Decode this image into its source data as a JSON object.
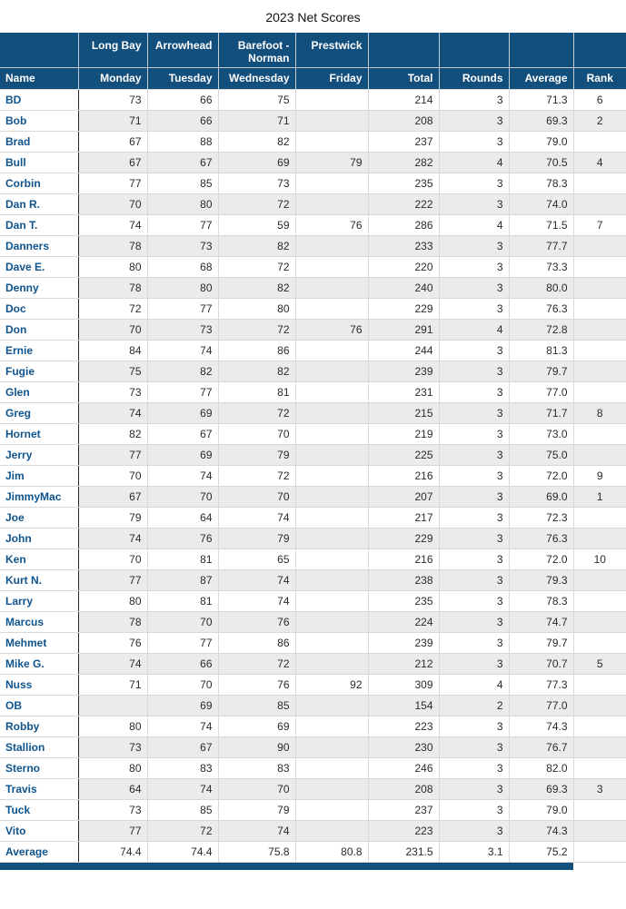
{
  "title": "2023 Net Scores",
  "colors": {
    "header_bg": "#134f7d",
    "header_text": "#ffffff",
    "name_text": "#0f548e",
    "alt_row_bg": "#ebebeb",
    "grid_line": "#d9d9d9",
    "header_grid_line": "#c3ced6",
    "name_column_divider": "#262626",
    "value_text": "#2a2a2a",
    "bottom_bar": "#134f7d"
  },
  "table": {
    "course_header": [
      "",
      "Long Bay",
      "Arrowhead",
      "Barefoot - Norman",
      "Prestwick",
      "",
      "",
      "",
      ""
    ],
    "day_header": [
      "Name",
      "Monday",
      "Tuesday",
      "Wednesday",
      "Friday",
      "Total",
      "Rounds",
      "Average",
      "Rank"
    ],
    "rows": [
      [
        "BD",
        "73",
        "66",
        "75",
        "",
        "214",
        "3",
        "71.3",
        "6"
      ],
      [
        "Bob",
        "71",
        "66",
        "71",
        "",
        "208",
        "3",
        "69.3",
        "2"
      ],
      [
        "Brad",
        "67",
        "88",
        "82",
        "",
        "237",
        "3",
        "79.0",
        ""
      ],
      [
        "Bull",
        "67",
        "67",
        "69",
        "79",
        "282",
        "4",
        "70.5",
        "4"
      ],
      [
        "Corbin",
        "77",
        "85",
        "73",
        "",
        "235",
        "3",
        "78.3",
        ""
      ],
      [
        "Dan R.",
        "70",
        "80",
        "72",
        "",
        "222",
        "3",
        "74.0",
        ""
      ],
      [
        "Dan T.",
        "74",
        "77",
        "59",
        "76",
        "286",
        "4",
        "71.5",
        "7"
      ],
      [
        "Danners",
        "78",
        "73",
        "82",
        "",
        "233",
        "3",
        "77.7",
        ""
      ],
      [
        "Dave E.",
        "80",
        "68",
        "72",
        "",
        "220",
        "3",
        "73.3",
        ""
      ],
      [
        "Denny",
        "78",
        "80",
        "82",
        "",
        "240",
        "3",
        "80.0",
        ""
      ],
      [
        "Doc",
        "72",
        "77",
        "80",
        "",
        "229",
        "3",
        "76.3",
        ""
      ],
      [
        "Don",
        "70",
        "73",
        "72",
        "76",
        "291",
        "4",
        "72.8",
        ""
      ],
      [
        "Ernie",
        "84",
        "74",
        "86",
        "",
        "244",
        "3",
        "81.3",
        ""
      ],
      [
        "Fugie",
        "75",
        "82",
        "82",
        "",
        "239",
        "3",
        "79.7",
        ""
      ],
      [
        "Glen",
        "73",
        "77",
        "81",
        "",
        "231",
        "3",
        "77.0",
        ""
      ],
      [
        "Greg",
        "74",
        "69",
        "72",
        "",
        "215",
        "3",
        "71.7",
        "8"
      ],
      [
        "Hornet",
        "82",
        "67",
        "70",
        "",
        "219",
        "3",
        "73.0",
        ""
      ],
      [
        "Jerry",
        "77",
        "69",
        "79",
        "",
        "225",
        "3",
        "75.0",
        ""
      ],
      [
        "Jim",
        "70",
        "74",
        "72",
        "",
        "216",
        "3",
        "72.0",
        "9"
      ],
      [
        "JimmyMac",
        "67",
        "70",
        "70",
        "",
        "207",
        "3",
        "69.0",
        "1"
      ],
      [
        "Joe",
        "79",
        "64",
        "74",
        "",
        "217",
        "3",
        "72.3",
        ""
      ],
      [
        "John",
        "74",
        "76",
        "79",
        "",
        "229",
        "3",
        "76.3",
        ""
      ],
      [
        "Ken",
        "70",
        "81",
        "65",
        "",
        "216",
        "3",
        "72.0",
        "10"
      ],
      [
        "Kurt N.",
        "77",
        "87",
        "74",
        "",
        "238",
        "3",
        "79.3",
        ""
      ],
      [
        "Larry",
        "80",
        "81",
        "74",
        "",
        "235",
        "3",
        "78.3",
        ""
      ],
      [
        "Marcus",
        "78",
        "70",
        "76",
        "",
        "224",
        "3",
        "74.7",
        ""
      ],
      [
        "Mehmet",
        "76",
        "77",
        "86",
        "",
        "239",
        "3",
        "79.7",
        ""
      ],
      [
        "Mike G.",
        "74",
        "66",
        "72",
        "",
        "212",
        "3",
        "70.7",
        "5"
      ],
      [
        "Nuss",
        "71",
        "70",
        "76",
        "92",
        "309",
        "4",
        "77.3",
        ""
      ],
      [
        "OB",
        "",
        "69",
        "85",
        "",
        "154",
        "2",
        "77.0",
        ""
      ],
      [
        "Robby",
        "80",
        "74",
        "69",
        "",
        "223",
        "3",
        "74.3",
        ""
      ],
      [
        "Stallion",
        "73",
        "67",
        "90",
        "",
        "230",
        "3",
        "76.7",
        ""
      ],
      [
        "Sterno",
        "80",
        "83",
        "83",
        "",
        "246",
        "3",
        "82.0",
        ""
      ],
      [
        "Travis",
        "64",
        "74",
        "70",
        "",
        "208",
        "3",
        "69.3",
        "3"
      ],
      [
        "Tuck",
        "73",
        "85",
        "79",
        "",
        "237",
        "3",
        "79.0",
        ""
      ],
      [
        "Vito",
        "77",
        "72",
        "74",
        "",
        "223",
        "3",
        "74.3",
        ""
      ]
    ],
    "average_row": [
      "Average",
      "74.4",
      "74.4",
      "75.8",
      "80.8",
      "231.5",
      "3.1",
      "75.2",
      ""
    ]
  }
}
